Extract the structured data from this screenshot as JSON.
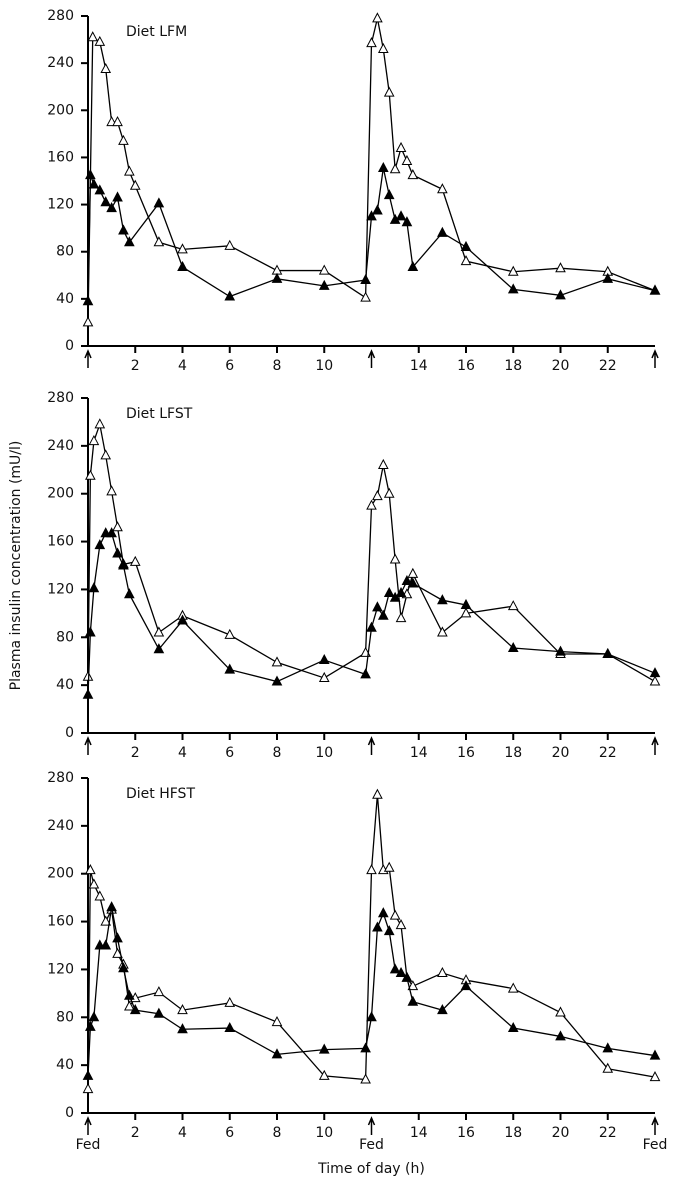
{
  "chart_data": [
    {
      "type": "line",
      "title": "Diet LFM",
      "xlim": [
        0,
        24
      ],
      "ylim": [
        0,
        280
      ],
      "yticks": [
        0,
        40,
        80,
        120,
        160,
        200,
        240,
        280
      ],
      "xticks": [
        2,
        4,
        6,
        8,
        10,
        14,
        16,
        18,
        20,
        22
      ],
      "fed_times": [
        0,
        12,
        24
      ],
      "series": [
        {
          "marker": "open",
          "color": "#000",
          "x": [
            0,
            0.2,
            0.5,
            0.75,
            1,
            1.25,
            1.5,
            1.75,
            2,
            3,
            4,
            6,
            8,
            10,
            11.75,
            12,
            12.25,
            12.5,
            12.75,
            13,
            13.25,
            13.5,
            13.75,
            15,
            16,
            18,
            20,
            22,
            24
          ],
          "values": [
            20,
            262,
            258,
            235,
            190,
            190,
            174,
            148,
            136,
            88,
            82,
            85,
            64,
            64,
            41,
            257,
            278,
            252,
            215,
            150,
            168,
            157,
            145,
            133,
            72,
            63,
            66,
            63,
            47
          ]
        },
        {
          "marker": "filled",
          "color": "#000",
          "x": [
            0,
            0.1,
            0.25,
            0.5,
            0.75,
            1,
            1.25,
            1.5,
            1.75,
            3,
            4,
            6,
            8,
            10,
            11.75,
            12,
            12.25,
            12.5,
            12.75,
            13,
            13.25,
            13.5,
            13.75,
            15,
            16,
            18,
            20,
            22,
            24
          ],
          "values": [
            38,
            145,
            137,
            132,
            122,
            117,
            126,
            98,
            88,
            121,
            67,
            42,
            57,
            51,
            56,
            110,
            115,
            151,
            128,
            107,
            110,
            105,
            67,
            96,
            84,
            48,
            43,
            57,
            47
          ]
        }
      ]
    },
    {
      "type": "line",
      "title": "Diet LFST",
      "ylabel": "Plasma insulin concentration (mU/l)",
      "xlim": [
        0,
        24
      ],
      "ylim": [
        0,
        280
      ],
      "yticks": [
        0,
        40,
        80,
        120,
        160,
        200,
        240,
        280
      ],
      "xticks": [
        2,
        4,
        6,
        8,
        10,
        14,
        16,
        18,
        20,
        22
      ],
      "fed_times": [
        0,
        12,
        24
      ],
      "series": [
        {
          "marker": "open",
          "color": "#000",
          "x": [
            0,
            0.1,
            0.25,
            0.5,
            0.75,
            1,
            1.25,
            1.5,
            2,
            3,
            4,
            6,
            8,
            10,
            11.75,
            12,
            12.25,
            12.5,
            12.75,
            13,
            13.25,
            13.5,
            13.75,
            15,
            16,
            18,
            20,
            22,
            24
          ],
          "values": [
            47,
            215,
            244,
            258,
            232,
            202,
            172,
            141,
            143,
            84,
            98,
            82,
            59,
            46,
            67,
            190,
            198,
            224,
            200,
            145,
            96,
            116,
            133,
            84,
            100,
            106,
            66,
            66,
            43
          ]
        },
        {
          "marker": "filled",
          "color": "#000",
          "x": [
            0,
            0.1,
            0.25,
            0.5,
            0.75,
            1,
            1.25,
            1.5,
            1.75,
            3,
            4,
            6,
            8,
            10,
            11.75,
            12,
            12.25,
            12.5,
            12.75,
            13,
            13.25,
            13.5,
            13.75,
            15,
            16,
            18,
            20,
            22,
            24
          ],
          "values": [
            32,
            84,
            121,
            157,
            167,
            167,
            150,
            140,
            116,
            70,
            94,
            53,
            43,
            61,
            49,
            88,
            105,
            98,
            117,
            113,
            117,
            127,
            125,
            111,
            107,
            71,
            68,
            66,
            50
          ]
        }
      ]
    },
    {
      "type": "line",
      "title": "Diet HFST",
      "xlabel": "Time of day (h)",
      "xlim": [
        0,
        24
      ],
      "ylim": [
        0,
        280
      ],
      "yticks": [
        0,
        40,
        80,
        120,
        160,
        200,
        240,
        280
      ],
      "xticks": [
        2,
        4,
        6,
        8,
        10,
        14,
        16,
        18,
        20,
        22
      ],
      "fed_times": [
        0,
        12,
        24
      ],
      "fed_labels": [
        "Fed",
        "Fed",
        "Fed"
      ],
      "series": [
        {
          "marker": "open",
          "color": "#000",
          "x": [
            0,
            0.1,
            0.25,
            0.5,
            0.75,
            1,
            1.25,
            1.5,
            1.75,
            2,
            3,
            4,
            6,
            8,
            10,
            11.75,
            12,
            12.25,
            12.5,
            12.75,
            13,
            13.25,
            13.5,
            13.75,
            15,
            16,
            18,
            20,
            22,
            24
          ],
          "values": [
            20,
            203,
            191,
            181,
            160,
            170,
            133,
            124,
            89,
            96,
            101,
            86,
            92,
            76,
            31,
            28,
            203,
            266,
            203,
            205,
            165,
            157,
            113,
            106,
            117,
            111,
            104,
            84,
            37,
            30
          ]
        },
        {
          "marker": "filled",
          "color": "#000",
          "x": [
            0,
            0.1,
            0.25,
            0.5,
            0.75,
            1,
            1.25,
            1.5,
            1.75,
            2,
            3,
            4,
            6,
            8,
            10,
            11.75,
            12,
            12.25,
            12.5,
            12.75,
            13,
            13.25,
            13.5,
            13.75,
            15,
            16,
            18,
            20,
            22,
            24
          ],
          "values": [
            31,
            72,
            80,
            140,
            140,
            172,
            146,
            121,
            98,
            86,
            83,
            70,
            71,
            49,
            53,
            54,
            80,
            155,
            167,
            152,
            120,
            117,
            113,
            93,
            86,
            106,
            71,
            64,
            54,
            48
          ]
        }
      ]
    }
  ]
}
